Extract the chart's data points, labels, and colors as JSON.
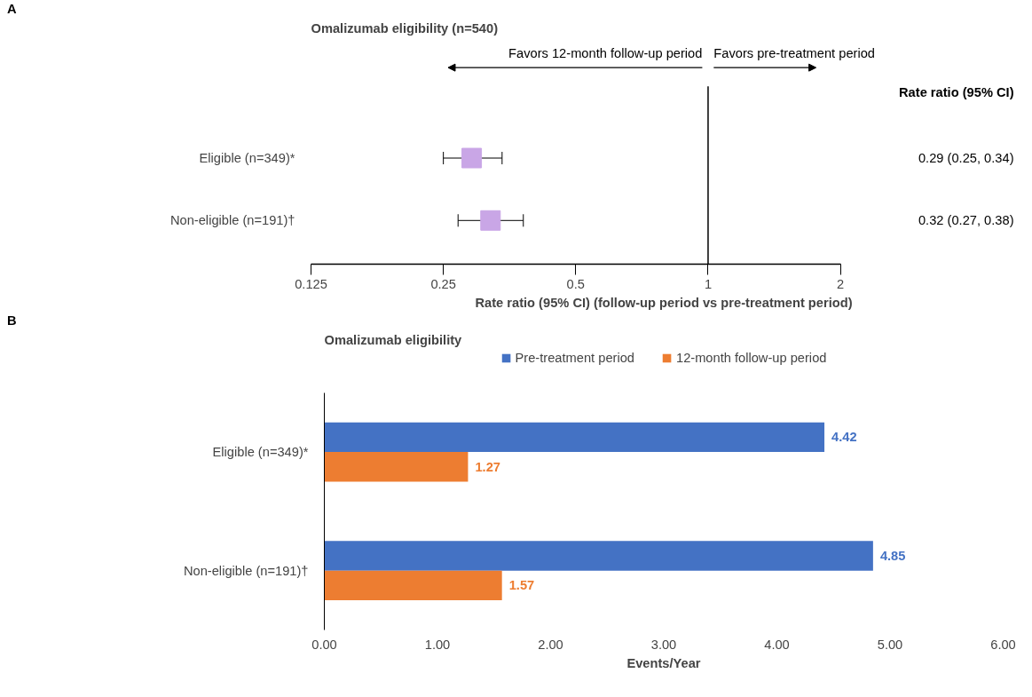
{
  "chart_data": [
    {
      "type": "scatter",
      "orientation": "horizontal",
      "title": "Omalizumab eligibility (n=540)",
      "xlabel": "Rate ratio (95% CI) (follow-up period vs pre-treatment period)",
      "log": "x",
      "xlim": [
        0.125,
        2
      ],
      "xticks": [
        0.125,
        0.25,
        0.5,
        1,
        2
      ],
      "categories": [
        "Eligible (n=349)*",
        "Non-eligible (n=191)†"
      ],
      "marker": "square",
      "grid": false,
      "color": "#c9a6e6",
      "values": [
        0.29,
        0.32
      ],
      "errors": [
        [
          0.25,
          0.34
        ],
        [
          0.27,
          0.38
        ]
      ],
      "value_labels": [
        "0.29 (0.25, 0.34)",
        "0.32 (0.27, 0.38)"
      ],
      "ref_lines": [
        {
          "axis": "x",
          "value": 1,
          "color": "#000000"
        }
      ],
      "annotations": [
        "A",
        "Favors 12-month follow-up period",
        "Favors pre-treatment period",
        "Rate ratio (95% CI)"
      ]
    },
    {
      "type": "bar",
      "orientation": "horizontal",
      "title": "Omalizumab eligibility",
      "xlabel": "Events/Year",
      "xlim": [
        0,
        6
      ],
      "xticks": [
        {
          "value": 0,
          "label": "0.00"
        },
        {
          "value": 1,
          "label": "1.00"
        },
        {
          "value": 2,
          "label": "2.00"
        },
        {
          "value": 3,
          "label": "3.00"
        },
        {
          "value": 4,
          "label": "4.00"
        },
        {
          "value": 5,
          "label": "5.00"
        },
        {
          "value": 6,
          "label": "6.00"
        }
      ],
      "categories": [
        "Eligible (n=349)*",
        "Non-eligible (n=191)†"
      ],
      "legend": "top",
      "grid": false,
      "data_labels": true,
      "series": [
        {
          "name": "Pre-treatment period",
          "color": "#4472c4",
          "values": [
            4.42,
            4.85
          ]
        },
        {
          "name": "12-month follow-up period",
          "color": "#ed7d31",
          "values": [
            1.27,
            1.57
          ]
        }
      ],
      "annotations": [
        "B"
      ]
    }
  ]
}
